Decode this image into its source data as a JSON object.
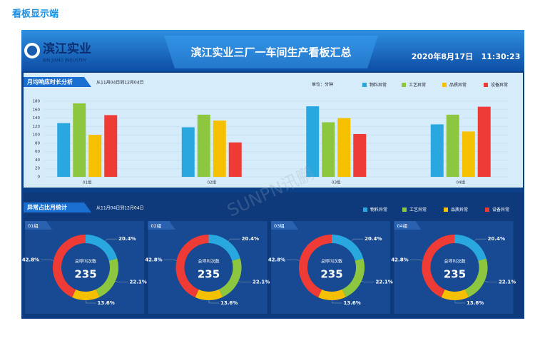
{
  "page_title": "看板显示端",
  "header": {
    "logo": "滨江实业",
    "logo_en": "BIN JIANG INDUSTRY",
    "title": "滨江实业三厂一车间生产看板汇总",
    "date": "2020年8月17日",
    "time": "11:30:23"
  },
  "watermark": "SUNPN讯鹏",
  "donut_section": {
    "title": "异常占比月统计",
    "subtitle": "从11月04日到12月04日"
  },
  "chart_data": [
    {
      "type": "bar",
      "title": "月均响应时长分析",
      "subtitle": "从11月04日到12月04日",
      "unit": "单位：分钟",
      "categories": [
        "01组",
        "02组",
        "03组",
        "04组"
      ],
      "series": [
        {
          "name": "物料异常",
          "color": "#29a8e0",
          "values": [
            128,
            118,
            168,
            125
          ]
        },
        {
          "name": "工艺异常",
          "color": "#8dc63f",
          "values": [
            175,
            148,
            130,
            148
          ]
        },
        {
          "name": "品质异常",
          "color": "#f5c000",
          "values": [
            100,
            134,
            140,
            108
          ]
        },
        {
          "name": "设备异常",
          "color": "#ee3b36",
          "values": [
            147,
            82,
            102,
            167
          ]
        }
      ],
      "ylim": [
        0,
        180
      ],
      "yticks": [
        0,
        20,
        40,
        60,
        80,
        100,
        120,
        140,
        160,
        180
      ],
      "grid": true
    },
    {
      "type": "donut",
      "title": "01组",
      "hole_label": "总呼叫次数",
      "total": 235,
      "categories": [
        "物料异常",
        "工艺异常",
        "品质异常",
        "设备异常"
      ],
      "colors": [
        "#29a8e0",
        "#8dc63f",
        "#f5c000",
        "#ee3b36"
      ],
      "values": [
        20.4,
        22.1,
        13.6,
        42.8
      ],
      "value_labels": [
        "20.4%",
        "22.1%",
        "13.6%",
        "42.8%"
      ]
    },
    {
      "type": "donut",
      "title": "02组",
      "hole_label": "总呼叫次数",
      "total": 235,
      "categories": [
        "物料异常",
        "工艺异常",
        "品质异常",
        "设备异常"
      ],
      "colors": [
        "#29a8e0",
        "#8dc63f",
        "#f5c000",
        "#ee3b36"
      ],
      "values": [
        20.4,
        22.1,
        13.6,
        42.8
      ],
      "value_labels": [
        "20.4%",
        "22.1%",
        "13.6%",
        "42.8%"
      ]
    },
    {
      "type": "donut",
      "title": "03组",
      "hole_label": "总呼叫次数",
      "total": 235,
      "categories": [
        "物料异常",
        "工艺异常",
        "品质异常",
        "设备异常"
      ],
      "colors": [
        "#29a8e0",
        "#8dc63f",
        "#f5c000",
        "#ee3b36"
      ],
      "values": [
        20.4,
        22.1,
        13.6,
        42.8
      ],
      "value_labels": [
        "20.4%",
        "22.1%",
        "13.6%",
        "42.8%"
      ]
    },
    {
      "type": "donut",
      "title": "04组",
      "hole_label": "总呼叫次数",
      "total": 235,
      "categories": [
        "物料异常",
        "工艺异常",
        "品质异常",
        "设备异常"
      ],
      "colors": [
        "#29a8e0",
        "#8dc63f",
        "#f5c000",
        "#ee3b36"
      ],
      "values": [
        20.4,
        22.1,
        13.6,
        42.8
      ],
      "value_labels": [
        "20.4%",
        "22.1%",
        "13.6%",
        "42.8%"
      ]
    }
  ]
}
